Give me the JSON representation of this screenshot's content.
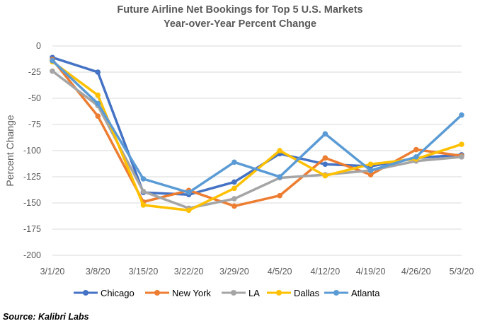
{
  "chart_data": {
    "type": "line",
    "title": "Future Airline Net Bookings for Top 5 U.S. Markets",
    "subtitle": "Year-over-Year Percent Change",
    "xlabel": "",
    "ylabel": "Percent Change",
    "ylim": [
      -200,
      0
    ],
    "yticks": [
      0,
      -25,
      -50,
      -75,
      -100,
      -125,
      -150,
      -175,
      -200
    ],
    "grid": true,
    "legend_position": "bottom",
    "categories": [
      "3/1/20",
      "3/8/20",
      "3/15/20",
      "3/22/20",
      "3/29/20",
      "4/5/20",
      "4/12/20",
      "4/19/20",
      "4/26/20",
      "5/3/20"
    ],
    "series": [
      {
        "name": "Chicago",
        "color": "#4472C4",
        "values": [
          -11,
          -25,
          -140,
          -142,
          -130,
          -103,
          -113,
          -115,
          -107,
          -104
        ]
      },
      {
        "name": "New York",
        "color": "#ED7D31",
        "values": [
          -13,
          -67,
          -149,
          -138,
          -153,
          -143,
          -107,
          -123,
          -99,
          -105
        ]
      },
      {
        "name": "LA",
        "color": "#A5A5A5",
        "values": [
          -24,
          -57,
          -139,
          -155,
          -146,
          -126,
          -123,
          -119,
          -110,
          -106
        ]
      },
      {
        "name": "Dallas",
        "color": "#FFC000",
        "values": [
          -15,
          -47,
          -152,
          -157,
          -136,
          -100,
          -124,
          -113,
          -108,
          -94
        ]
      },
      {
        "name": "Atlanta",
        "color": "#5B9BD5",
        "values": [
          -14,
          -55,
          -127,
          -140,
          -111,
          -125,
          -84,
          -119,
          -106,
          -66
        ]
      }
    ]
  },
  "source": "Source: Kalibri Labs"
}
